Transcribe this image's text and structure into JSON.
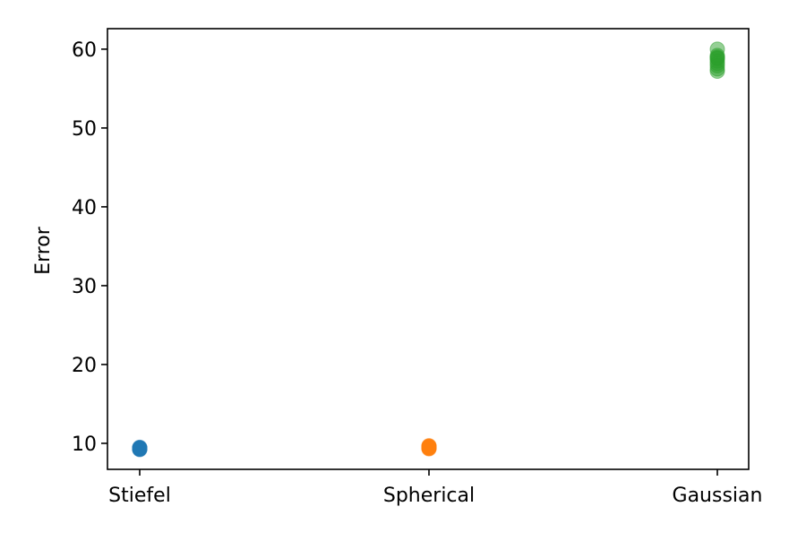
{
  "chart_data": {
    "type": "scatter",
    "title": "",
    "xlabel": "",
    "ylabel": "Error",
    "categories": [
      "Stiefel",
      "Spherical",
      "Gaussian"
    ],
    "ylim": [
      6.7,
      62.6
    ],
    "yticks": [
      10,
      20,
      30,
      40,
      50,
      60
    ],
    "grid": false,
    "legend": "none",
    "marker_alpha": 0.5,
    "series": [
      {
        "category": "Stiefel",
        "color": "#1f77b4",
        "values": [
          9.2,
          9.3,
          9.35,
          9.4,
          9.45,
          9.5,
          9.3,
          9.4,
          9.25,
          9.35
        ]
      },
      {
        "category": "Spherical",
        "color": "#ff7f0e",
        "values": [
          9.3,
          9.4,
          9.5,
          9.6,
          9.7,
          9.45,
          9.55,
          9.35,
          9.65,
          9.5
        ]
      },
      {
        "category": "Gaussian",
        "color": "#2ca02c",
        "values": [
          60.0,
          59.2,
          59.0,
          58.8,
          58.5,
          58.2,
          57.9,
          57.5,
          57.2,
          58.9
        ]
      }
    ]
  }
}
